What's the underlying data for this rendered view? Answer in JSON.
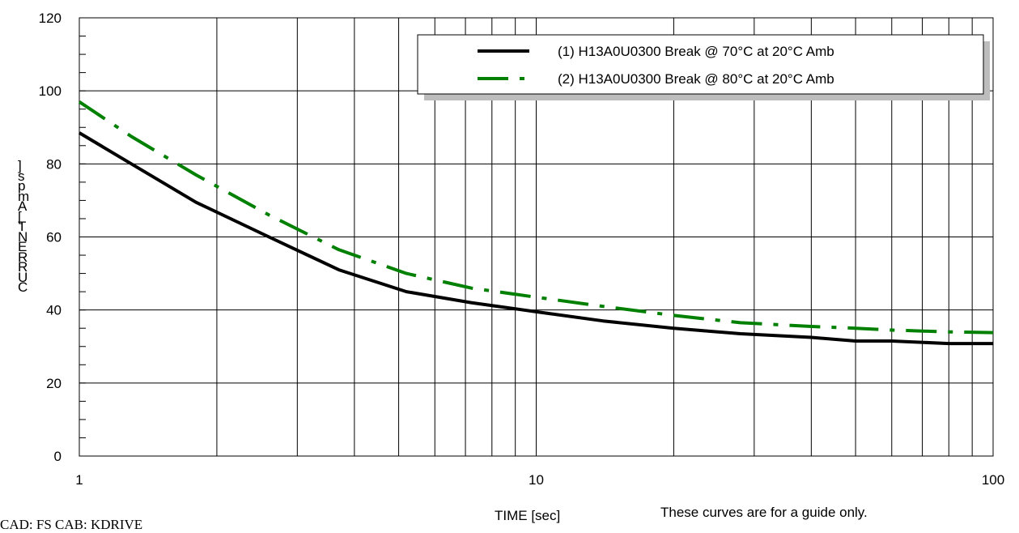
{
  "chart_data": {
    "type": "line",
    "xscale": "log",
    "xlim": [
      1,
      100
    ],
    "ylim": [
      0,
      120
    ],
    "yticks": [
      0,
      20,
      40,
      60,
      80,
      100,
      120
    ],
    "xticks": [
      1,
      10,
      100
    ],
    "grid": true,
    "legend_position": "top-right",
    "xlabel": "TIME [sec]",
    "ylabel": "CURRENT [Amps]",
    "series": [
      {
        "name": "(1) H13A0U0300 Break @ 70°C at 20°C Amb",
        "color": "#000000",
        "style": "solid",
        "x": [
          1,
          1.3,
          1.8,
          2.6,
          3.7,
          5.2,
          7.2,
          10,
          14,
          20,
          28,
          40,
          50,
          60,
          80,
          100
        ],
        "y": [
          88.5,
          80,
          69.5,
          60,
          51,
          45,
          42,
          39.5,
          37,
          35,
          33.5,
          32.5,
          31.5,
          31.5,
          30.8,
          30.8
        ]
      },
      {
        "name": "(2) H13A0U0300 Break @ 80°C at 20°C Amb",
        "color": "#008000",
        "style": "dashdot",
        "x": [
          1,
          1.3,
          1.8,
          2.6,
          3.7,
          5.2,
          7.2,
          10,
          14,
          20,
          28,
          40,
          50,
          60,
          80,
          100
        ],
        "y": [
          97,
          87.5,
          77,
          66,
          56.5,
          50,
          46,
          43.5,
          41,
          38.5,
          36.5,
          35.5,
          35,
          34.5,
          34,
          33.8
        ]
      }
    ]
  },
  "footer": {
    "left_text": "CAD: FS    CAB: KDRIVE",
    "note": "These curves are for a guide only."
  }
}
